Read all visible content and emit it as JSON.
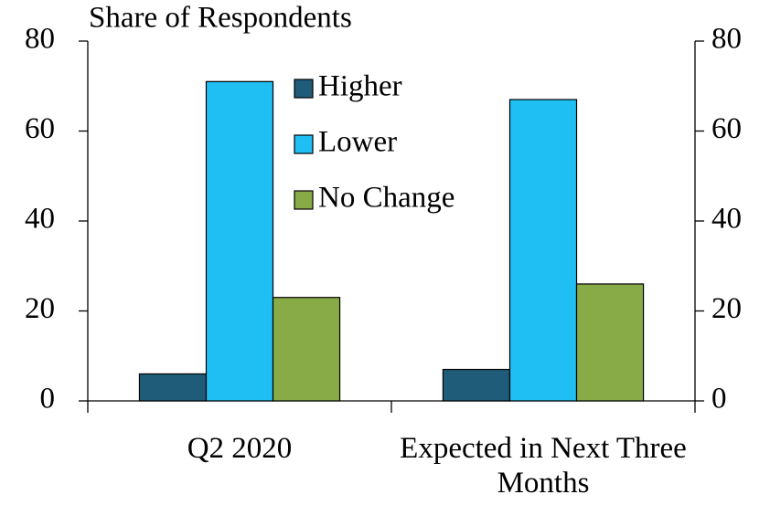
{
  "chart_data": {
    "type": "bar",
    "title": "Share of Respondents",
    "categories": [
      "Q2 2020",
      "Expected in Next Three Months"
    ],
    "series": [
      {
        "name": "Higher",
        "color": "#1f5c7a",
        "values": [
          6,
          7
        ]
      },
      {
        "name": "Lower",
        "color": "#1fbff3",
        "values": [
          71,
          67
        ]
      },
      {
        "name": "No Change",
        "color": "#89ab47",
        "values": [
          23,
          26
        ]
      }
    ],
    "ylim": [
      0,
      80
    ],
    "yticks": [
      0,
      20,
      40,
      60,
      80
    ],
    "y2lim": [
      0,
      80
    ],
    "y2ticks": [
      0,
      20,
      40,
      60,
      80
    ],
    "legend": "top-center",
    "grid": false
  }
}
